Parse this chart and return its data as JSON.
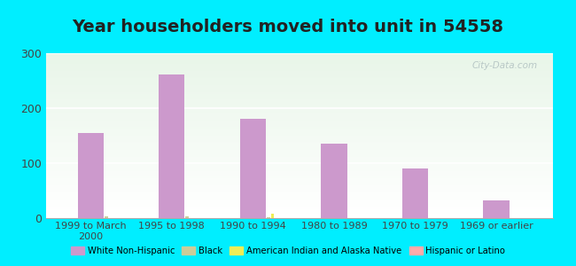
{
  "title": "Year householders moved into unit in 54558",
  "categories": [
    "1999 to March\n2000",
    "1995 to 1998",
    "1990 to 1994",
    "1980 to 1989",
    "1970 to 1979",
    "1969 or earlier"
  ],
  "series": {
    "White Non-Hispanic": [
      155,
      262,
      181,
      135,
      90,
      33
    ],
    "Black": [
      3,
      4,
      2,
      0,
      0,
      0
    ],
    "American Indian and Alaska Native": [
      0,
      0,
      8,
      0,
      0,
      0
    ],
    "Hispanic or Latino": [
      0,
      0,
      0,
      0,
      0,
      0
    ]
  },
  "colors": {
    "White Non-Hispanic": "#cc99cc",
    "Black": "#cccc99",
    "American Indian and Alaska Native": "#eeee55",
    "Hispanic or Latino": "#ffaaaa"
  },
  "ylim": [
    0,
    300
  ],
  "yticks": [
    0,
    100,
    200,
    300
  ],
  "background_color": "#00eeff",
  "title_fontsize": 14,
  "bar_width": 0.35,
  "legend_items": [
    "White Non-Hispanic",
    "Black",
    "American Indian and Alaska Native",
    "Hispanic or Latino"
  ]
}
